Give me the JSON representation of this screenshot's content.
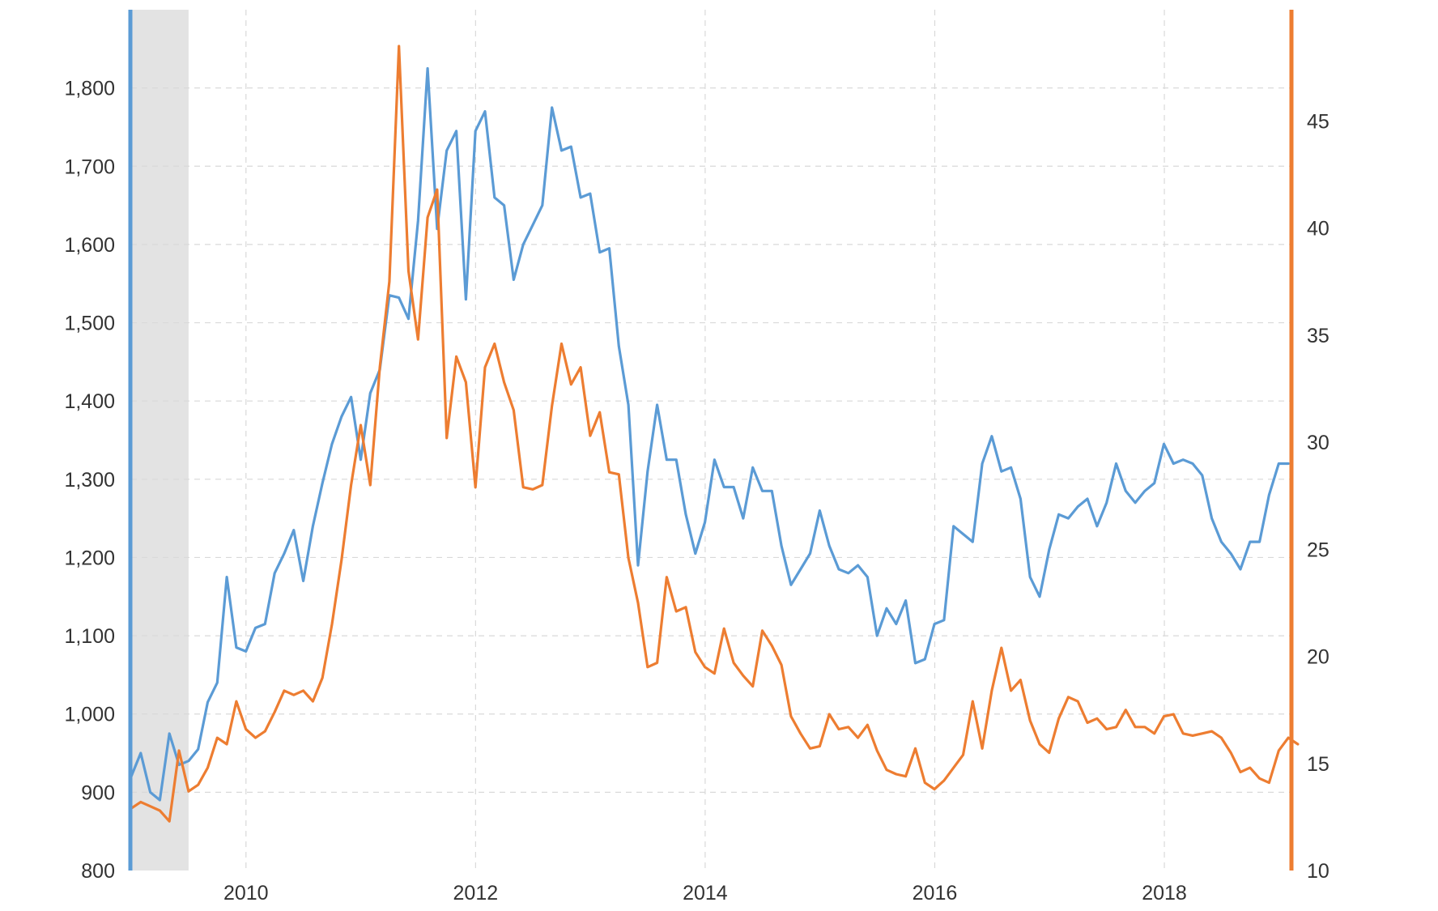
{
  "chart_data": {
    "type": "line",
    "x_axis": {
      "min": 2009.0,
      "max": 2019.1,
      "ticks": [
        {
          "value": 2010,
          "label": "2010"
        },
        {
          "value": 2012,
          "label": "2012"
        },
        {
          "value": 2014,
          "label": "2014"
        },
        {
          "value": 2016,
          "label": "2016"
        },
        {
          "value": 2018,
          "label": "2018"
        }
      ]
    },
    "y_left": {
      "min": 800,
      "max": 1900,
      "ticks": [
        {
          "value": 800,
          "label": "800"
        },
        {
          "value": 900,
          "label": "900"
        },
        {
          "value": 1000,
          "label": "1,000"
        },
        {
          "value": 1100,
          "label": "1,100"
        },
        {
          "value": 1200,
          "label": "1,200"
        },
        {
          "value": 1300,
          "label": "1,300"
        },
        {
          "value": 1400,
          "label": "1,400"
        },
        {
          "value": 1500,
          "label": "1,500"
        },
        {
          "value": 1600,
          "label": "1,600"
        },
        {
          "value": 1700,
          "label": "1,700"
        },
        {
          "value": 1800,
          "label": "1,800"
        }
      ],
      "color": "#5b9bd5"
    },
    "y_right": {
      "min": 10,
      "max": 50.2,
      "ticks": [
        {
          "value": 10,
          "label": "10"
        },
        {
          "value": 15,
          "label": "15"
        },
        {
          "value": 20,
          "label": "20"
        },
        {
          "value": 25,
          "label": "25"
        },
        {
          "value": 30,
          "label": "30"
        },
        {
          "value": 35,
          "label": "35"
        },
        {
          "value": 40,
          "label": "40"
        },
        {
          "value": 45,
          "label": "45"
        }
      ],
      "color": "#ed7d31"
    },
    "grid": true,
    "recession_band": {
      "x_start": 2009.0,
      "x_end": 2009.5,
      "color": "#e3e3e3"
    },
    "series": [
      {
        "axis": "left",
        "color": "#5b9bd5",
        "x_start": 2009.0,
        "x_step": 0.0833,
        "values": [
          920,
          950,
          900,
          890,
          975,
          935,
          940,
          955,
          1015,
          1040,
          1175,
          1085,
          1080,
          1110,
          1115,
          1180,
          1205,
          1235,
          1170,
          1240,
          1295,
          1345,
          1380,
          1405,
          1325,
          1410,
          1440,
          1535,
          1532,
          1505,
          1630,
          1825,
          1620,
          1720,
          1745,
          1530,
          1745,
          1770,
          1660,
          1650,
          1555,
          1600,
          1625,
          1650,
          1775,
          1720,
          1725,
          1660,
          1665,
          1590,
          1595,
          1470,
          1395,
          1190,
          1310,
          1395,
          1325,
          1325,
          1255,
          1205,
          1245,
          1325,
          1290,
          1290,
          1250,
          1315,
          1285,
          1285,
          1215,
          1165,
          1185,
          1205,
          1260,
          1215,
          1185,
          1180,
          1190,
          1175,
          1100,
          1135,
          1115,
          1145,
          1065,
          1070,
          1115,
          1120,
          1240,
          1230,
          1220,
          1320,
          1355,
          1310,
          1315,
          1275,
          1175,
          1150,
          1210,
          1255,
          1250,
          1265,
          1275,
          1240,
          1270,
          1320,
          1285,
          1270,
          1285,
          1295,
          1345,
          1320,
          1325,
          1320,
          1305,
          1250,
          1220,
          1205,
          1185,
          1220,
          1220,
          1280,
          1320,
          1320
        ]
      },
      {
        "axis": "right",
        "color": "#ed7d31",
        "x_start": 2009.0,
        "x_step": 0.0833,
        "values": [
          12.9,
          13.2,
          13.0,
          12.8,
          12.3,
          15.6,
          13.7,
          14.0,
          14.8,
          16.2,
          15.9,
          17.9,
          16.6,
          16.2,
          16.5,
          17.4,
          18.4,
          18.2,
          18.4,
          17.9,
          19.0,
          21.5,
          24.5,
          28.0,
          30.8,
          28.0,
          33.5,
          37.5,
          48.5,
          38.0,
          34.8,
          40.5,
          41.8,
          30.2,
          34.0,
          32.8,
          27.9,
          33.5,
          34.6,
          32.8,
          31.5,
          27.9,
          27.8,
          28.0,
          31.7,
          34.6,
          32.7,
          33.5,
          30.3,
          31.4,
          28.6,
          28.5,
          24.6,
          22.5,
          19.5,
          19.7,
          23.7,
          22.1,
          22.3,
          20.2,
          19.5,
          19.2,
          21.3,
          19.7,
          19.1,
          18.6,
          21.2,
          20.5,
          19.6,
          17.2,
          16.4,
          15.7,
          15.8,
          17.3,
          16.6,
          16.7,
          16.2,
          16.8,
          15.6,
          14.7,
          14.5,
          14.4,
          15.7,
          14.1,
          13.8,
          14.2,
          14.8,
          15.4,
          17.9,
          15.7,
          18.4,
          20.4,
          18.4,
          18.9,
          17.0,
          15.9,
          15.5,
          17.1,
          18.1,
          17.9,
          16.9,
          17.1,
          16.6,
          16.7,
          17.5,
          16.7,
          16.7,
          16.4,
          17.2,
          17.3,
          16.4,
          16.3,
          16.4,
          16.5,
          16.2,
          15.5,
          14.6,
          14.8,
          14.3,
          14.1,
          15.6,
          16.2,
          15.9
        ]
      }
    ]
  }
}
